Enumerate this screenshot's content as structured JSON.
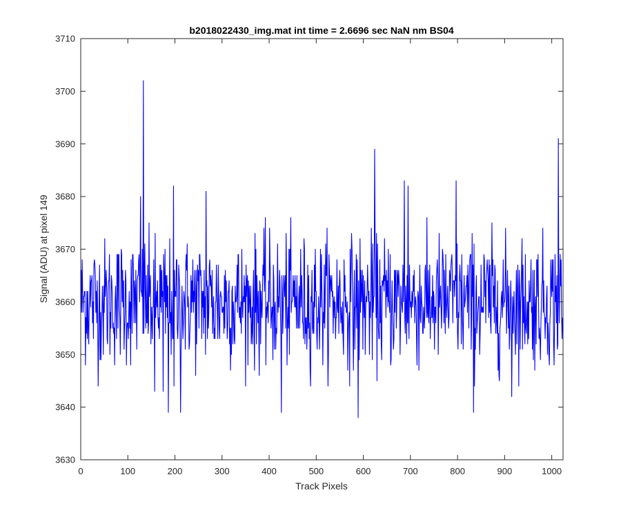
{
  "chart_data": {
    "type": "line",
    "title": "b2018022430_img.mat int time = 2.6696 sec  NaN nm BS04",
    "xlabel": "Track Pixels",
    "ylabel": "Signal (ADU) at pixel 149",
    "xlim": [
      0,
      1024
    ],
    "ylim": [
      3630,
      3710
    ],
    "xticks": [
      "0",
      "100",
      "200",
      "300",
      "400",
      "500",
      "600",
      "700",
      "800",
      "900",
      "1000"
    ],
    "yticks": [
      "3630",
      "3640",
      "3650",
      "3660",
      "3670",
      "3680",
      "3690",
      "3700",
      "3710"
    ],
    "grid": false,
    "legend": "none",
    "series": [
      {
        "color": "#0000ff",
        "x_start": 0,
        "x_step": 1,
        "n_points": 1024,
        "mean": 3660,
        "std": 6,
        "features": [
          {
            "x": 133,
            "y": 3702
          },
          {
            "x": 127,
            "y": 3680
          },
          {
            "x": 157,
            "y": 3643
          },
          {
            "x": 175,
            "y": 3643
          },
          {
            "x": 186,
            "y": 3639
          },
          {
            "x": 197,
            "y": 3682
          },
          {
            "x": 198,
            "y": 3644
          },
          {
            "x": 212,
            "y": 3639
          },
          {
            "x": 266,
            "y": 3681
          },
          {
            "x": 426,
            "y": 3639
          },
          {
            "x": 589,
            "y": 3638
          },
          {
            "x": 624,
            "y": 3689
          },
          {
            "x": 687,
            "y": 3683
          },
          {
            "x": 695,
            "y": 3682
          },
          {
            "x": 797,
            "y": 3683
          },
          {
            "x": 834,
            "y": 3639
          },
          {
            "x": 915,
            "y": 3642
          },
          {
            "x": 1014,
            "y": 3691
          },
          {
            "x": 1022,
            "y": 3653
          }
        ]
      }
    ]
  }
}
